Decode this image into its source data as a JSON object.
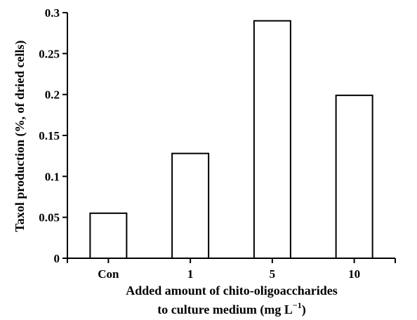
{
  "chart_data": {
    "type": "bar",
    "title": "",
    "categories": [
      "Con",
      "1",
      "5",
      "10"
    ],
    "values": [
      0.055,
      0.128,
      0.29,
      0.199
    ],
    "xlabel_line1": "Added amount of chito-oligoaccharides",
    "xlabel_line2": "to culture medium (mg L",
    "xlabel_sup": "−1",
    "xlabel_close": ")",
    "ylabel": "Taxol production (%, of dried cells)",
    "ylim": [
      0,
      0.3
    ],
    "yticks": [
      0,
      0.05,
      0.1,
      0.15,
      0.2,
      0.25,
      0.3
    ],
    "ytick_labels": [
      "0",
      "0.05",
      "0.1",
      "0.15",
      "0.2",
      "0.25",
      "0.3"
    ],
    "grid": false,
    "bar_fill": "#ffffff",
    "bar_stroke": "#000000"
  }
}
